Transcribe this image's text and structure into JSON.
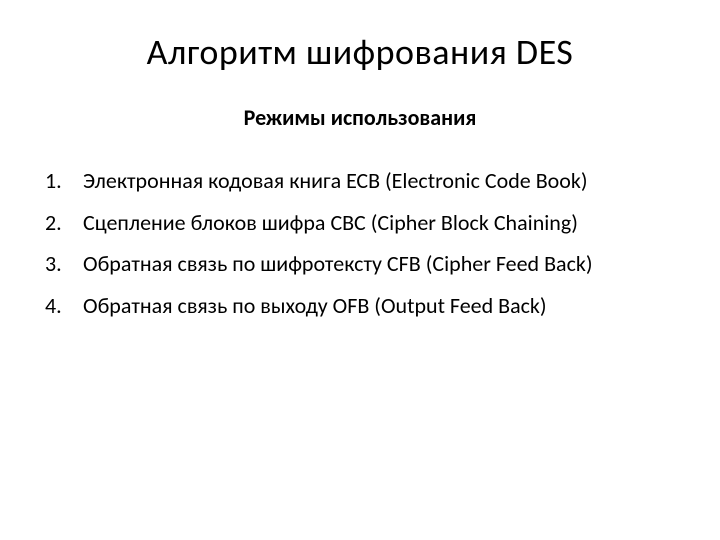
{
  "slide": {
    "title": "Алгоритм шифрования DES",
    "subtitle": "Режимы использования",
    "items": [
      "Электронная кодовая книга ЕСВ (Electronic Code Book)",
      "Сцепление блоков шифра СВС (Cipher Block Chaining)",
      "Обратная связь по шифротексту CFB (Cipher Feed Back)",
      "Обратная связь по выходу OFB (Output Feed Back)"
    ],
    "background_color": "#ffffff",
    "text_color": "#000000",
    "title_fontsize": 36,
    "subtitle_fontsize": 22,
    "item_fontsize": 22
  }
}
